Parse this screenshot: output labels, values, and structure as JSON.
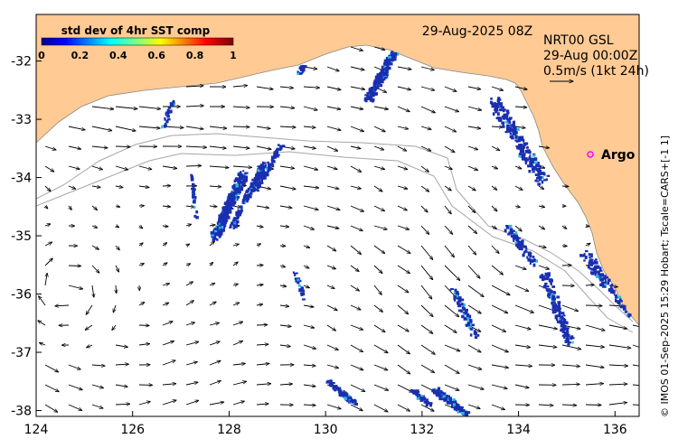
{
  "map": {
    "colorbar": {
      "title": "std dev of 4hr SST comp",
      "ticks": [
        "0",
        "0.2",
        "0.4",
        "0.6",
        "0.8",
        "1"
      ],
      "range": [
        0,
        1
      ]
    },
    "date_label": "29-Aug-2025 08Z",
    "current_info": {
      "line1": "NRT00 GSL",
      "line2": "29-Aug 00:00Z",
      "line3": "0.5m/s (1kt 24h)"
    },
    "argo_label": "Argo",
    "credit": "© IMOS 01-Sep-2025 15:29 Hobart; Tscale=CARS+[-1 1]",
    "x_axis": {
      "ticks": [
        "124",
        "126",
        "128",
        "130",
        "132",
        "134",
        "136"
      ],
      "range": [
        124,
        136.5
      ]
    },
    "y_axis": {
      "ticks": [
        "-32",
        "-33",
        "-34",
        "-35",
        "-36",
        "-37",
        "-38"
      ],
      "range": [
        -38.1,
        -31.2
      ]
    },
    "colors": {
      "land": "#FFCA94",
      "sst_patch": "#1A2FB0",
      "isobath": "#A6A6A6",
      "argo": "#FF00FF"
    }
  }
}
